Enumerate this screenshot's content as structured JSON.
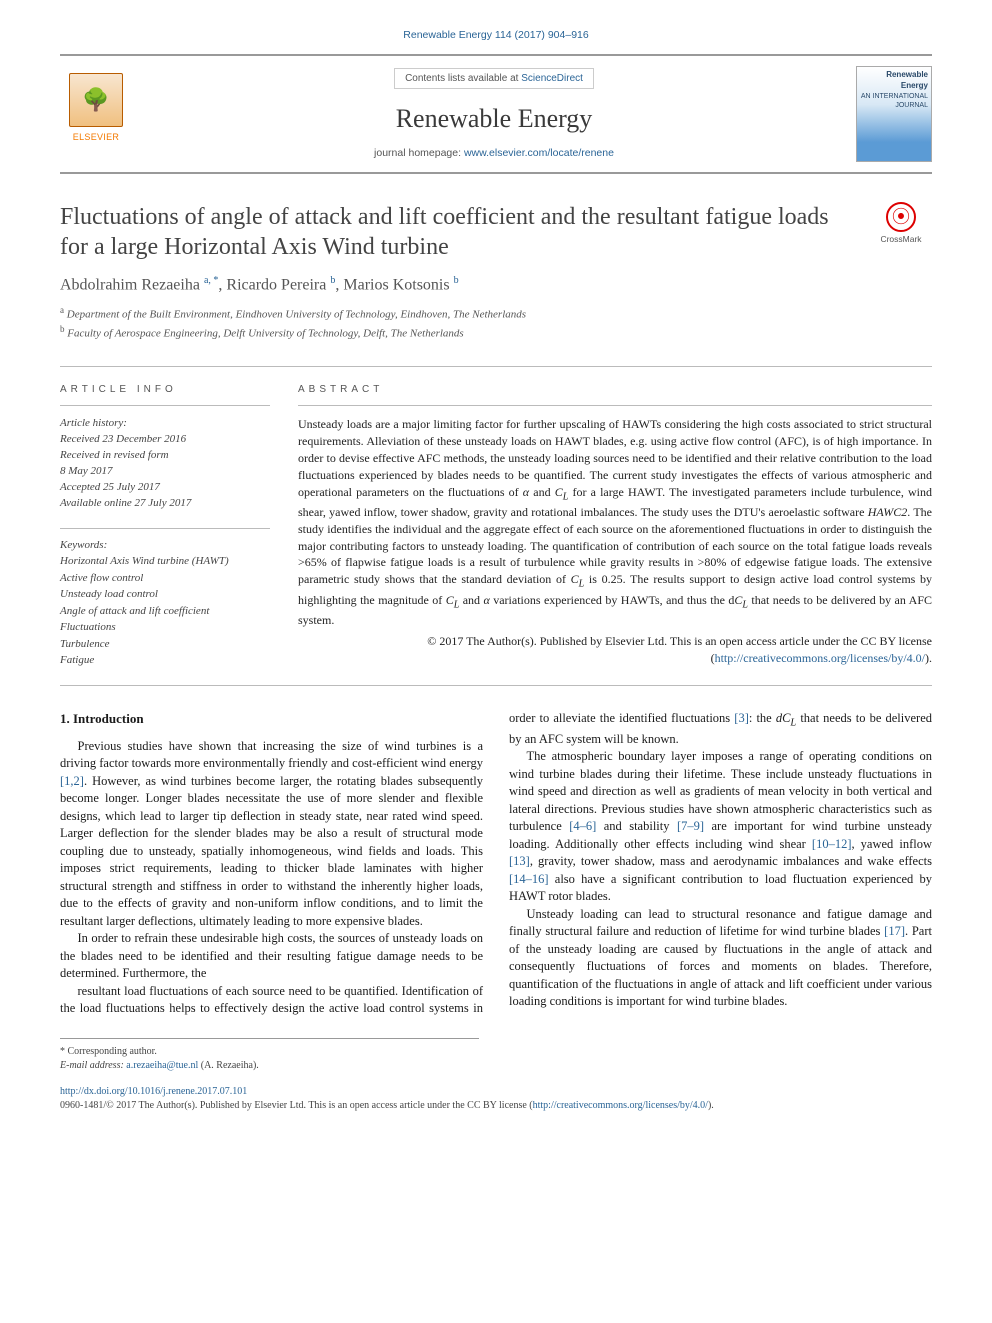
{
  "citation": "Renewable Energy 114 (2017) 904–916",
  "masthead": {
    "publisher_label": "ELSEVIER",
    "contents_prefix": "Contents lists available at ",
    "contents_link": "ScienceDirect",
    "journal_name": "Renewable Energy",
    "homepage_prefix": "journal homepage: ",
    "homepage_url": "www.elsevier.com/locate/renene",
    "cover_title": "Renewable Energy",
    "cover_subtitle": "AN INTERNATIONAL JOURNAL"
  },
  "article": {
    "title": "Fluctuations of angle of attack and lift coefficient and the resultant fatigue loads for a large Horizontal Axis Wind turbine",
    "crossmark_label": "CrossMark",
    "authors_html": "Abdolrahim Rezaeiha <sup>a, *</sup>, Ricardo Pereira <sup>b</sup>, Marios Kotsonis <sup>b</sup>",
    "affiliations": [
      {
        "sup": "a",
        "text": "Department of the Built Environment, Eindhoven University of Technology, Eindhoven, The Netherlands"
      },
      {
        "sup": "b",
        "text": "Faculty of Aerospace Engineering, Delft University of Technology, Delft, The Netherlands"
      }
    ]
  },
  "info": {
    "info_label": "ARTICLE INFO",
    "abstract_label": "ABSTRACT",
    "history_label": "Article history:",
    "history": [
      "Received 23 December 2016",
      "Received in revised form",
      "8 May 2017",
      "Accepted 25 July 2017",
      "Available online 27 July 2017"
    ],
    "keywords_label": "Keywords:",
    "keywords": [
      "Horizontal Axis Wind turbine (HAWT)",
      "Active flow control",
      "Unsteady load control",
      "Angle of attack and lift coefficient",
      "Fluctuations",
      "Turbulence",
      "Fatigue"
    ]
  },
  "abstract": "Unsteady loads are a major limiting factor for further upscaling of HAWTs considering the high costs associated to strict structural requirements. Alleviation of these unsteady loads on HAWT blades, e.g. using active flow control (AFC), is of high importance. In order to devise effective AFC methods, the unsteady loading sources need to be identified and their relative contribution to the load fluctuations experienced by blades needs to be quantified. The current study investigates the effects of various atmospheric and operational parameters on the fluctuations of α and C_L for a large HAWT. The investigated parameters include turbulence, wind shear, yawed inflow, tower shadow, gravity and rotational imbalances. The study uses the DTU's aeroelastic software HAWC2. The study identifies the individual and the aggregate effect of each source on the aforementioned fluctuations in order to distinguish the major contributing factors to unsteady loading. The quantification of contribution of each source on the total fatigue loads reveals >65% of flapwise fatigue loads is a result of turbulence while gravity results in >80% of edgewise fatigue loads. The extensive parametric study shows that the standard deviation of C_L is 0.25. The results support to design active load control systems by highlighting the magnitude of C_L and α variations experienced by HAWTs, and thus the dC_L that needs to be delivered by an AFC system.",
  "license": {
    "copyright": "© 2017 The Author(s). Published by Elsevier Ltd. This is an open access article under the CC BY license",
    "url": "(http://creativecommons.org/licenses/by/4.0/).",
    "url_text": "http://creativecommons.org/licenses/by/4.0/"
  },
  "body": {
    "heading": "1. Introduction",
    "p1": "Previous studies have shown that increasing the size of wind turbines is a driving factor towards more environmentally friendly and cost-efficient wind energy [1,2]. However, as wind turbines become larger, the rotating blades subsequently become longer. Longer blades necessitate the use of more slender and flexible designs, which lead to larger tip deflection in steady state, near rated wind speed. Larger deflection for the slender blades may be also a result of structural mode coupling due to unsteady, spatially inhomogeneous, wind fields and loads. This imposes strict requirements, leading to thicker blade laminates with higher structural strength and stiffness in order to withstand the inherently higher loads, due to the effects of gravity and non-uniform inflow conditions, and to limit the resultant larger deflections, ultimately leading to more expensive blades.",
    "p2": "In order to refrain these undesirable high costs, the sources of unsteady loads on the blades need to be identified and their resulting fatigue damage needs to be determined. Furthermore, the",
    "p3": "resultant load fluctuations of each source need to be quantified. Identification of the load fluctuations helps to effectively design the active load control systems in order to alleviate the identified fluctuations [3]: the dC_L that needs to be delivered by an AFC system will be known.",
    "p4": "The atmospheric boundary layer imposes a range of operating conditions on wind turbine blades during their lifetime. These include unsteady fluctuations in wind speed and direction as well as gradients of mean velocity in both vertical and lateral directions. Previous studies have shown atmospheric characteristics such as turbulence [4–6] and stability [7–9] are important for wind turbine unsteady loading. Additionally other effects including wind shear [10–12], yawed inflow [13], gravity, tower shadow, mass and aerodynamic imbalances and wake effects [14–16] also have a significant contribution to load fluctuation experienced by HAWT rotor blades.",
    "p5": "Unsteady loading can lead to structural resonance and fatigue damage and finally structural failure and reduction of lifetime for wind turbine blades [17]. Part of the unsteady loading are caused by fluctuations in the angle of attack and consequently fluctuations of forces and moments on blades. Therefore, quantification of the fluctuations in angle of attack and lift coefficient under various loading conditions is important for wind turbine blades.",
    "refs": {
      "r12": "[1,2]",
      "r3": "[3]",
      "r46": "[4–6]",
      "r79": "[7–9]",
      "r1012": "[10–12]",
      "r13": "[13]",
      "r1416": "[14–16]",
      "r17": "[17]"
    }
  },
  "footnote": {
    "corr": "* Corresponding author.",
    "email_label": "E-mail address: ",
    "email": "a.rezaeiha@tue.nl",
    "email_suffix": " (A. Rezaeiha)."
  },
  "doi": {
    "url": "http://dx.doi.org/10.1016/j.renene.2017.07.101",
    "line2": "0960-1481/© 2017 The Author(s). Published by Elsevier Ltd. This is an open access article under the CC BY license (",
    "cc": "http://creativecommons.org/licenses/by/4.0/",
    "line2_end": ")."
  },
  "colors": {
    "link": "#2a6496",
    "rule": "#999999",
    "text": "#1a1a1a",
    "muted": "#555555",
    "elsevier_orange": "#f47a00"
  }
}
